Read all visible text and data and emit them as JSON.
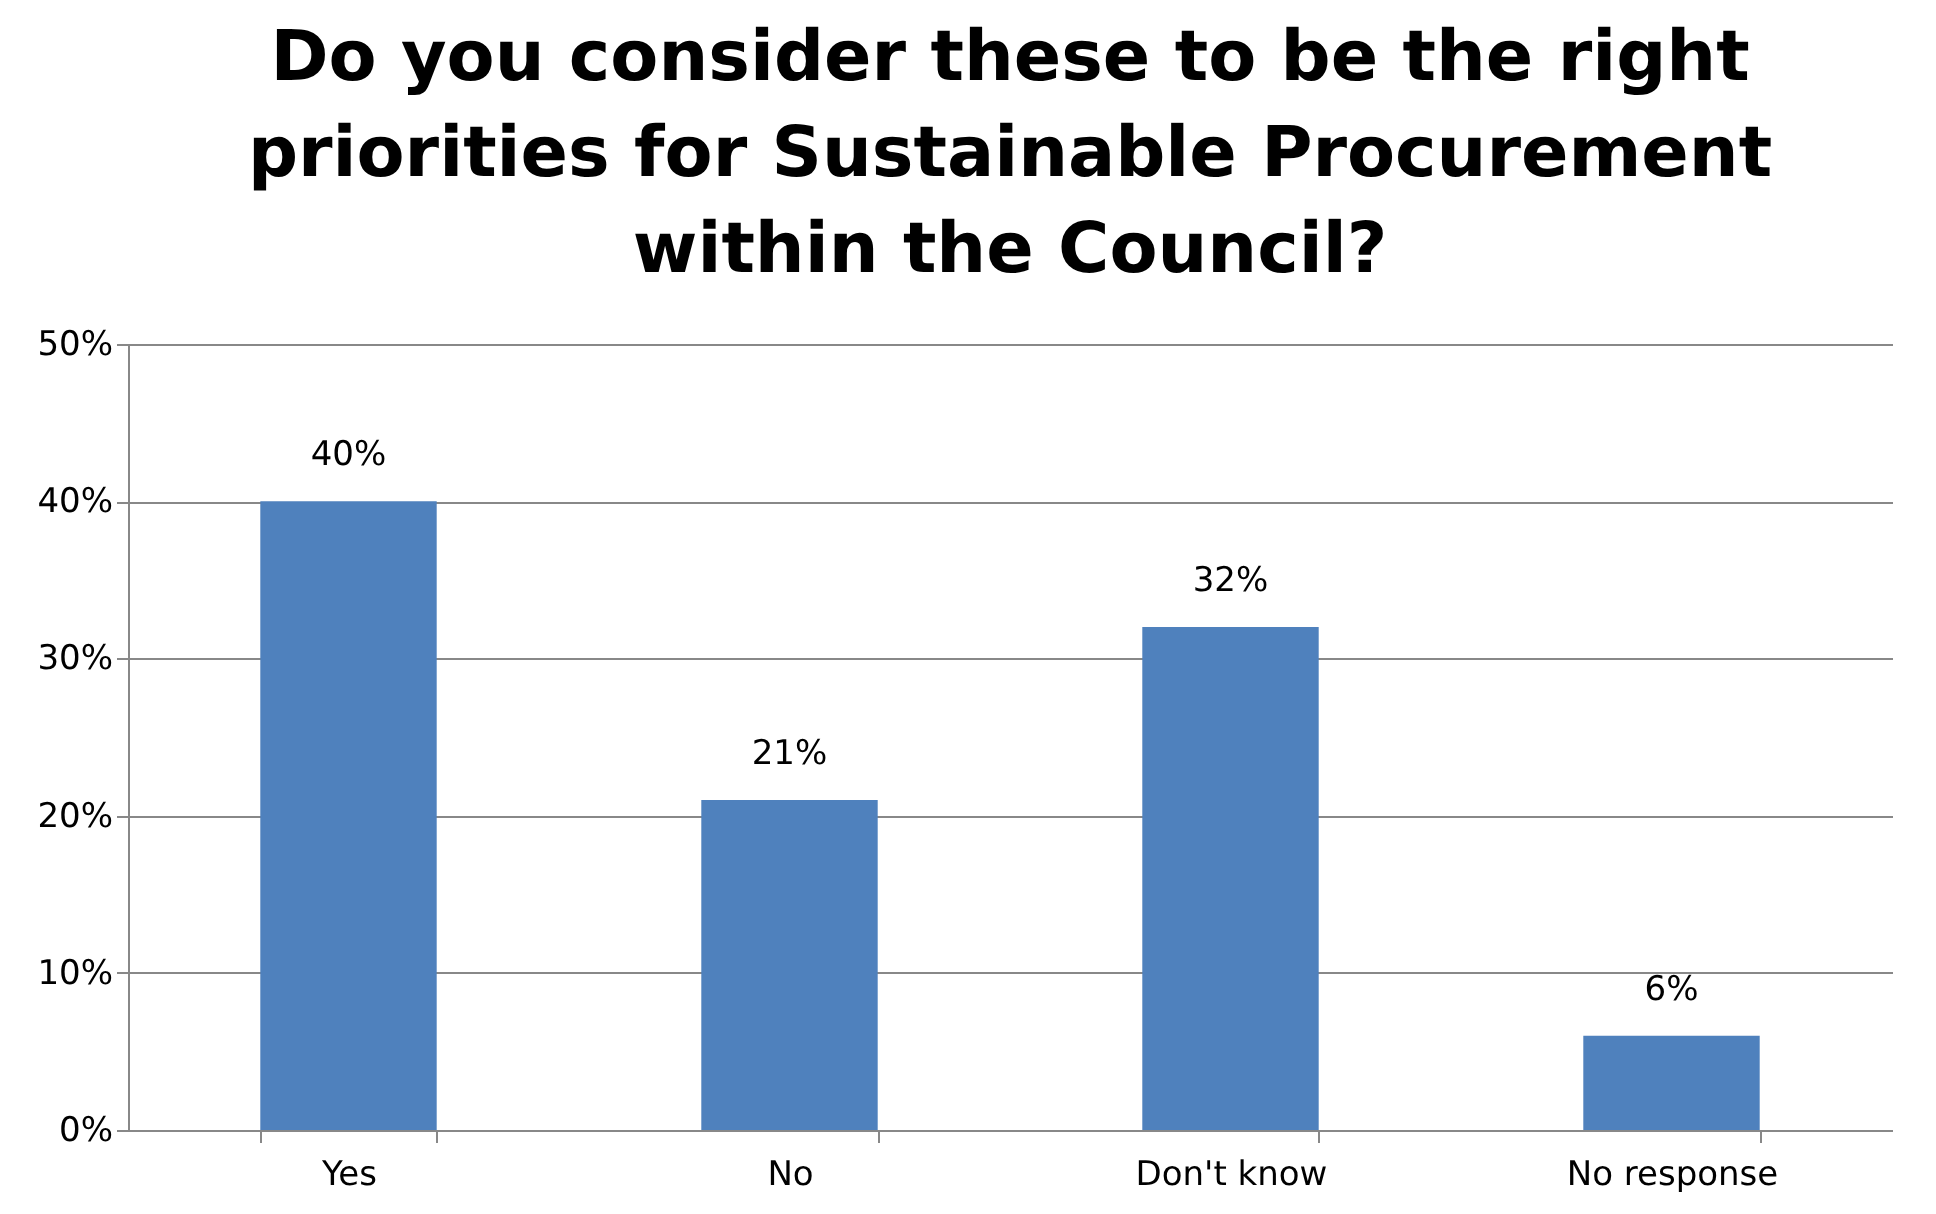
{
  "chart_data": {
    "type": "bar",
    "title": "Do you consider these to be the right priorities for Sustainable Procurement within the Council?",
    "categories": [
      "Yes",
      "No",
      "Don't know",
      "No response"
    ],
    "values": [
      40,
      21,
      32,
      6
    ],
    "value_labels": [
      "40%",
      "21%",
      "32%",
      "6%"
    ],
    "color": "#4f81bd",
    "ylim": [
      0,
      50
    ],
    "yticks": [
      {
        "value": 0,
        "label": "0%"
      },
      {
        "value": 10,
        "label": "10%"
      },
      {
        "value": 20,
        "label": "20%"
      },
      {
        "value": 30,
        "label": "30%"
      },
      {
        "value": 40,
        "label": "40%"
      },
      {
        "value": 50,
        "label": "50%"
      }
    ],
    "grid": "y"
  }
}
